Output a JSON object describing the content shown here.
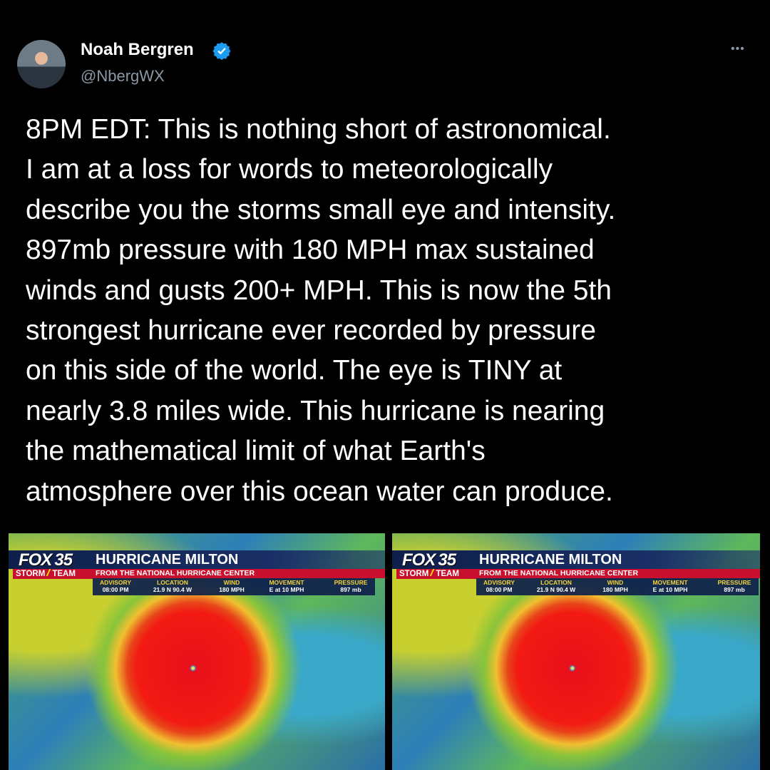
{
  "author": {
    "name": "Noah Bergren",
    "handle": "@NbergWX"
  },
  "menu": "•••",
  "tweet": {
    "lines": [
      "8PM EDT: This is nothing short of astronomical.",
      "I am at a loss for words to meteorologically",
      "describe you the storms small eye and intensity.",
      "897mb pressure with 180 MPH max sustained",
      "winds and gusts 200+ MPH. This is now the 5th",
      "strongest hurricane ever recorded by pressure",
      "on this side of the world. The eye is TINY at",
      "nearly 3.8 miles wide. This hurricane is nearing",
      "the mathematical limit of what Earth's",
      "atmosphere over this ocean water can produce."
    ]
  },
  "images": [
    {
      "brand": "FOX",
      "channel": "35",
      "team_left": "STORM",
      "team_right": "TEAM",
      "title": "HURRICANE MILTON",
      "subtitle": "FROM THE NATIONAL HURRICANE CENTER",
      "fields": [
        {
          "label": "ADVISORY",
          "value": "08:00 PM"
        },
        {
          "label": "LOCATION",
          "value": "21.9 N 90.4 W"
        },
        {
          "label": "WIND",
          "value": "180 MPH"
        },
        {
          "label": "MOVEMENT",
          "value": "E at 10 MPH"
        },
        {
          "label": "PRESSURE",
          "value": "897 mb"
        }
      ]
    },
    {
      "brand": "FOX",
      "channel": "35",
      "team_left": "STORM",
      "team_right": "TEAM",
      "title": "HURRICANE MILTON",
      "subtitle": "FROM THE NATIONAL HURRICANE CENTER",
      "fields": [
        {
          "label": "ADVISORY",
          "value": "08:00 PM"
        },
        {
          "label": "LOCATION",
          "value": "21.9 N 90.4 W"
        },
        {
          "label": "WIND",
          "value": "180 MPH"
        },
        {
          "label": "MOVEMENT",
          "value": "E at 10 MPH"
        },
        {
          "label": "PRESSURE",
          "value": "897 mb"
        }
      ]
    }
  ]
}
